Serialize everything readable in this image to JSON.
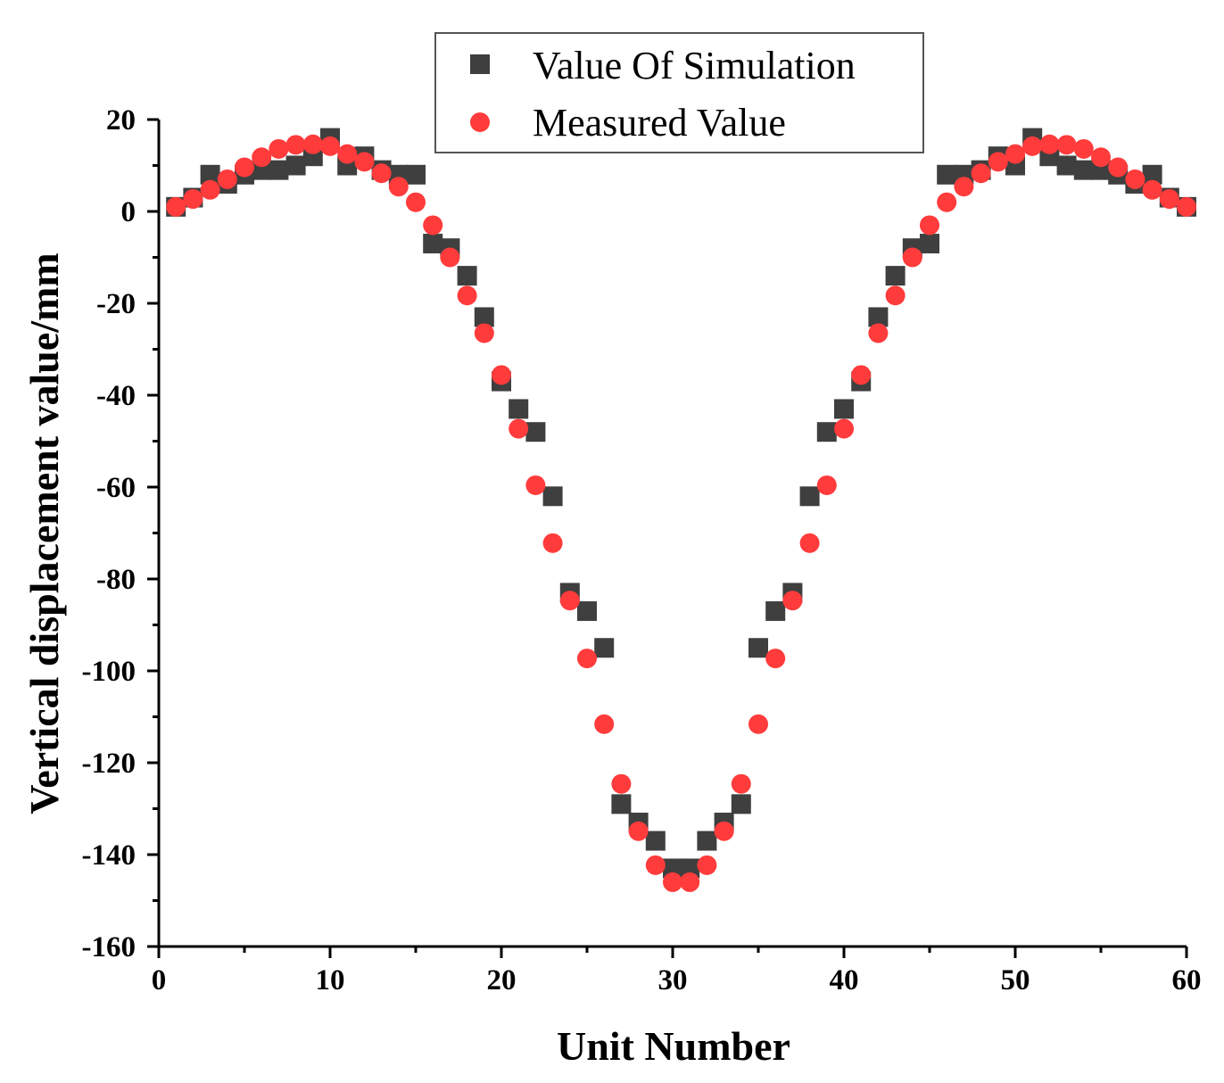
{
  "chart_data": {
    "type": "scatter",
    "title": "",
    "xlabel": "Unit Number",
    "ylabel": "Vertical displacement value/mm",
    "xlim": [
      0,
      60
    ],
    "ylim": [
      -160,
      20
    ],
    "xticks": [
      0,
      10,
      20,
      30,
      40,
      50,
      60
    ],
    "xtick_labels": [
      "0",
      "10",
      "20",
      "30",
      "40",
      "50",
      "60"
    ],
    "yticks": [
      20,
      0,
      -20,
      -40,
      -60,
      -80,
      -100,
      -120,
      -140,
      -160
    ],
    "ytick_labels": [
      "20",
      "0",
      "-20",
      "-40",
      "-60",
      "-80",
      "-100",
      "-120",
      "-140",
      "-160"
    ],
    "grid": false,
    "legend_position": "top-center",
    "series": [
      {
        "name": "Value Of Simulation",
        "marker": "square",
        "color": "#3f3f3f",
        "x": [
          1,
          2,
          3,
          4,
          5,
          6,
          7,
          8,
          9,
          10,
          11,
          12,
          13,
          14,
          15,
          16,
          17,
          18,
          19,
          20,
          21,
          22,
          23,
          24,
          25,
          26,
          27,
          28,
          29,
          30,
          31,
          32,
          33,
          34,
          35,
          36,
          37,
          38,
          39,
          40,
          41,
          42,
          43,
          44,
          45,
          46,
          47,
          48,
          49,
          50,
          51,
          52,
          53,
          54,
          55,
          56,
          57,
          58,
          59,
          60
        ],
        "y": [
          1,
          3,
          8,
          6,
          8,
          9,
          9,
          10,
          12,
          16,
          10,
          12,
          9,
          8,
          8,
          -7,
          -8,
          -14,
          -23,
          -37,
          -43,
          -48,
          -62,
          -83,
          -87,
          -95,
          -129,
          -133,
          -137,
          -143,
          -143,
          -137,
          -133,
          -129,
          -95,
          -87,
          -83,
          -62,
          -48,
          -43,
          -37,
          -23,
          -14,
          -8,
          -7,
          8,
          8,
          9,
          12,
          10,
          16,
          12,
          10,
          9,
          9,
          8,
          6,
          8,
          3,
          1
        ]
      },
      {
        "name": "Measured Value",
        "marker": "circle",
        "color": "#ff3b3b",
        "x": [
          1,
          2,
          3,
          4,
          5,
          6,
          7,
          8,
          9,
          10,
          11,
          12,
          13,
          14,
          15,
          16,
          17,
          18,
          19,
          20,
          21,
          22,
          23,
          24,
          25,
          26,
          27,
          28,
          29,
          30,
          31,
          32,
          33,
          34,
          35,
          36,
          37,
          38,
          39,
          40,
          41,
          42,
          43,
          44,
          45,
          46,
          47,
          48,
          49,
          50,
          51,
          52,
          53,
          54,
          55,
          56,
          57,
          58,
          59,
          60
        ],
        "y": [
          1,
          2.7,
          4.7,
          7,
          9.6,
          11.8,
          13.6,
          14.5,
          14.6,
          14.2,
          12.5,
          10.8,
          8.3,
          5.4,
          2,
          -3,
          -10,
          -18.3,
          -26.5,
          -35.6,
          -47.3,
          -59.6,
          -72.2,
          -84.7,
          -97.3,
          -111.6,
          -124.6,
          -134.9,
          -142.3,
          -146,
          -146,
          -142.3,
          -134.9,
          -124.6,
          -111.6,
          -97.3,
          -84.7,
          -72.2,
          -59.6,
          -47.3,
          -35.6,
          -26.5,
          -18.3,
          -10,
          -3,
          2,
          5.4,
          8.3,
          10.8,
          12.5,
          14.2,
          14.6,
          14.5,
          13.6,
          11.8,
          9.6,
          7,
          4.7,
          2.7,
          1
        ]
      }
    ]
  }
}
